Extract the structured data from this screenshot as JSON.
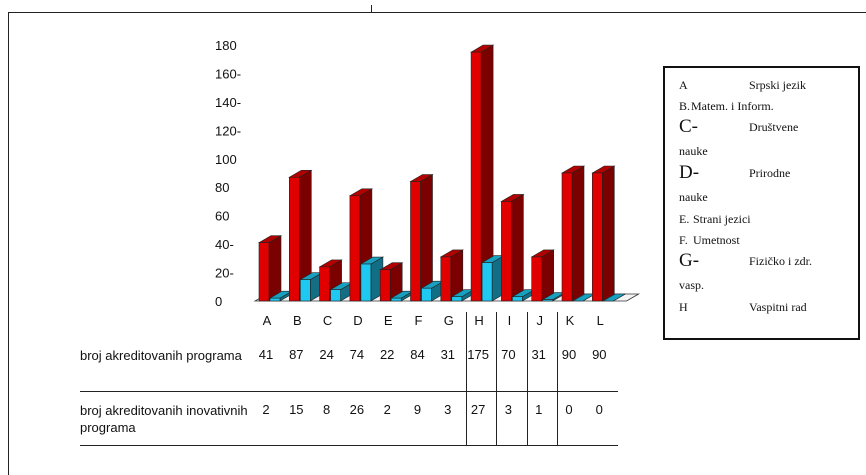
{
  "chart_data": {
    "type": "bar",
    "categories": [
      "A",
      "B",
      "C",
      "D",
      "E",
      "F",
      "G",
      "H",
      "I",
      "J",
      "K",
      "L"
    ],
    "series": [
      {
        "values": [
          41,
          87,
          24,
          74,
          22,
          84,
          31,
          175,
          70,
          31,
          90,
          90
        ],
        "color": "#e00000"
      },
      {
        "values": [
          2,
          15,
          8,
          26,
          2,
          9,
          3,
          27,
          3,
          1,
          0,
          0
        ],
        "color": "#1ec8f0"
      }
    ],
    "yticks": [
      "0",
      "20-",
      "40-",
      "60",
      "80",
      "100",
      "120-",
      "140-",
      "160-",
      "180"
    ],
    "ylim": [
      0,
      180
    ],
    "grid": false,
    "legend_position": "right"
  },
  "legend": [
    {
      "key": "A",
      "label": "Srpski jezik"
    },
    {
      "key": "B.",
      "label": "Matem. i Inform."
    },
    {
      "key": "C-",
      "label": "Društvene",
      "cont": "nauke"
    },
    {
      "key": "D-",
      "label": "Prirodne",
      "cont": "nauke"
    },
    {
      "key": "E.",
      "label": "Strani jezici"
    },
    {
      "key": "F.",
      "label": "Umetnost"
    },
    {
      "key": "G-",
      "label": "Fizičko i zdr.",
      "cont": "vasp."
    },
    {
      "key": "H",
      "label": "Vaspitni rad"
    }
  ],
  "table": {
    "row1_label": "broj akreditovanih programa",
    "row1_values": [
      "41",
      "87",
      "24",
      "74",
      "22",
      "84",
      "31",
      "175",
      "70",
      "31",
      "90",
      "90"
    ],
    "row2_label": "broj akreditovanih inovativnih programa",
    "row2_values": [
      "2",
      "15",
      "8",
      "26",
      "2",
      "9",
      "3",
      "27",
      "3",
      "1",
      "0",
      "0"
    ]
  }
}
